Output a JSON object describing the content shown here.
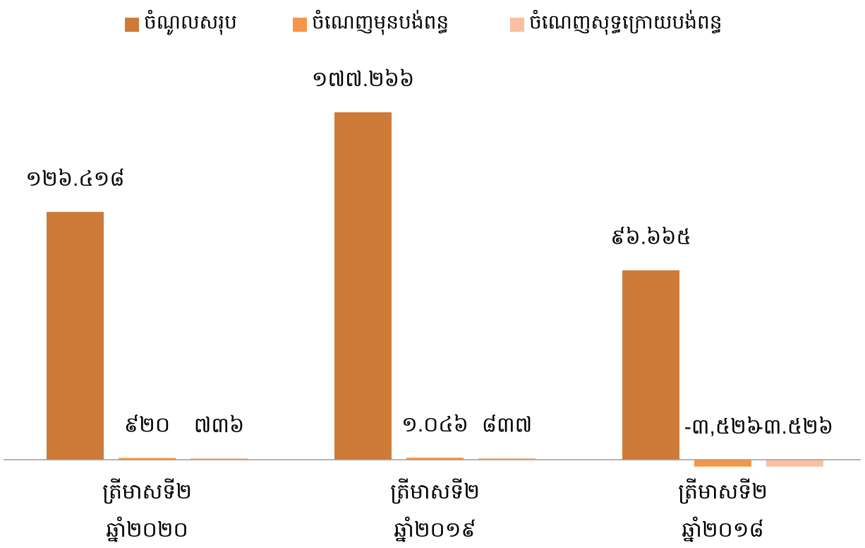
{
  "chart_data": {
    "type": "bar",
    "categories": [
      [
        "ត្រីមាសទី២",
        "ឆ្នាំ២០២០"
      ],
      [
        "ត្រីមាសទី២",
        "ឆ្នាំ២០១៩"
      ],
      [
        "ត្រីមាសទី២",
        "ឆ្នាំ២០១៨"
      ]
    ],
    "series": [
      {
        "name": "ចំណូលសរុប",
        "color": "#cd7b37",
        "values": [
          126418,
          177266,
          96665
        ],
        "value_labels": [
          "១២៦.៤១៨",
          "១៧៧.២៦៦",
          "៩៦.៦៦៥"
        ]
      },
      {
        "name": "ចំណេញមុនបង់ពន្ធ",
        "color": "#f79646",
        "values": [
          920,
          1046,
          -3526
        ],
        "value_labels": [
          "៩២០",
          "១.០៤៦",
          "-៣,៥២៦"
        ]
      },
      {
        "name": "ចំណេញសុទ្ធក្រោយបង់ពន្ធ",
        "color": "#f9c0a0",
        "values": [
          736,
          837,
          -3526
        ],
        "value_labels": [
          "៧៣៦",
          "៨៣៧",
          "-៣.៥២៦"
        ]
      }
    ],
    "legend": "top"
  }
}
